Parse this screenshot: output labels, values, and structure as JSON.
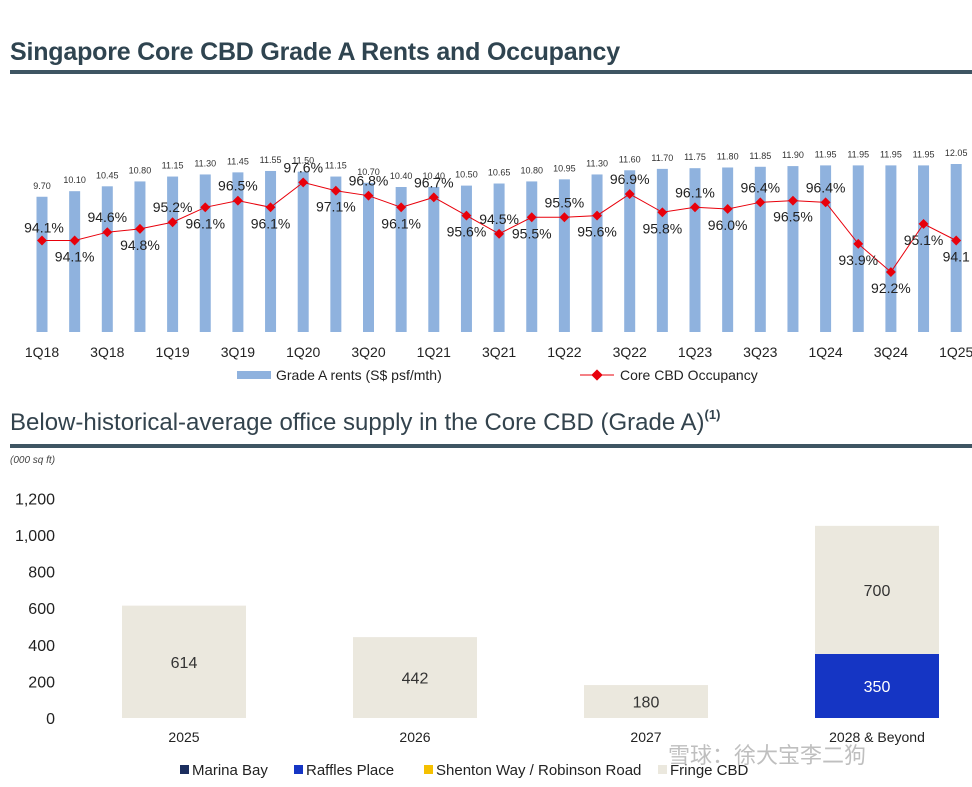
{
  "section1": {
    "title": "Singapore Core CBD Grade A Rents and Occupancy"
  },
  "section2": {
    "title": "Below-historical-average office supply in the Core CBD (Grade A)",
    "footnote": "(1)",
    "unit": "(000 sq ft)"
  },
  "watermark": "雪球：徐大宝李二狗",
  "colors": {
    "rent_bar": "#8fb2de",
    "occupancy_line": "#e8000b",
    "marina_bay": "#1b2e5e",
    "raffles_place": "#1535c4",
    "shenton_way": "#f5c000",
    "fringe_cbd": "#ebe8de",
    "header_rule": "#3e5563"
  },
  "chart_data": [
    {
      "type": "bar",
      "quarters": [
        "1Q18",
        "2Q18",
        "3Q18",
        "4Q18",
        "1Q19",
        "2Q19",
        "3Q19",
        "4Q19",
        "1Q20",
        "2Q20",
        "3Q20",
        "4Q20",
        "1Q21",
        "2Q21",
        "3Q21",
        "4Q21",
        "1Q22",
        "2Q22",
        "3Q22",
        "4Q22",
        "1Q23",
        "2Q23",
        "3Q23",
        "4Q23",
        "1Q24",
        "2Q24",
        "3Q24",
        "4Q24",
        "1Q25"
      ],
      "x_tick_labels": [
        "1Q18",
        "3Q18",
        "1Q19",
        "3Q19",
        "1Q20",
        "3Q20",
        "1Q21",
        "3Q21",
        "1Q22",
        "3Q22",
        "1Q23",
        "3Q23",
        "1Q24",
        "3Q24",
        "1Q25"
      ],
      "rent_labels": [
        "9.70",
        "10.10",
        "10.45",
        "10.80",
        "11.15",
        "11.30",
        "11.45",
        "11.55",
        "11.50",
        "11.15",
        "10.70",
        "10.40",
        "10.40",
        "10.50",
        "10.65",
        "10.80",
        "10.95",
        "11.30",
        "11.60",
        "11.70",
        "11.75",
        "11.80",
        "11.85",
        "11.90",
        "11.95",
        "11.95",
        "11.95",
        "11.95",
        "12.05"
      ],
      "series": [
        {
          "name": "Grade A rents (S$ psf/mth)",
          "kind": "bar",
          "values": [
            9.7,
            10.1,
            10.45,
            10.8,
            11.15,
            11.3,
            11.45,
            11.55,
            11.5,
            11.15,
            10.7,
            10.4,
            10.4,
            10.5,
            10.65,
            10.8,
            10.95,
            11.3,
            11.6,
            11.7,
            11.75,
            11.8,
            11.85,
            11.9,
            11.95,
            11.95,
            11.95,
            11.95,
            12.05
          ]
        },
        {
          "name": "Core CBD Occupancy",
          "kind": "line",
          "values": [
            94.1,
            94.1,
            94.6,
            94.8,
            95.2,
            96.1,
            96.5,
            96.1,
            97.6,
            97.1,
            96.8,
            96.1,
            96.7,
            95.6,
            94.5,
            95.5,
            95.5,
            95.6,
            96.9,
            95.8,
            96.1,
            96.0,
            96.4,
            96.5,
            96.4,
            93.9,
            92.2,
            95.1,
            94.1
          ],
          "labels": [
            "94.1%",
            "94.1%",
            "94.6%",
            "94.8%",
            "95.2%",
            "96.1%",
            "96.5%",
            "96.1%",
            "97.6%",
            "97.1%",
            "96.8%",
            "96.1%",
            "96.7%",
            "95.6%",
            "94.5%",
            "95.5%",
            "95.5%",
            "95.6%",
            "96.9%",
            "95.8%",
            "96.1%",
            "96.0%",
            "96.4%",
            "96.5%",
            "96.4%",
            "93.9%",
            "92.2%",
            "95.1%",
            "94.1"
          ]
        }
      ],
      "legend": [
        "Grade A rents (S$ psf/mth)",
        "Core CBD Occupancy"
      ],
      "legend_position": "bottom"
    },
    {
      "type": "bar",
      "stacked": true,
      "categories": [
        "2025",
        "2026",
        "2027",
        "2028 & Beyond"
      ],
      "series": [
        {
          "name": "Marina Bay",
          "values": [
            0,
            0,
            0,
            0
          ]
        },
        {
          "name": "Raffles Place",
          "values": [
            0,
            0,
            0,
            350
          ]
        },
        {
          "name": "Shenton Way / Robinson Road",
          "values": [
            0,
            0,
            0,
            0
          ]
        },
        {
          "name": "Fringe CBD",
          "values": [
            614,
            442,
            180,
            700
          ]
        }
      ],
      "data_labels": [
        [
          "614"
        ],
        [
          "442"
        ],
        [
          "180"
        ],
        [
          "350",
          "700"
        ]
      ],
      "y_ticks": [
        "0",
        "200",
        "400",
        "600",
        "800",
        "1,000",
        "1,200"
      ],
      "ylim": [
        0,
        1200
      ],
      "legend_position": "bottom"
    }
  ]
}
